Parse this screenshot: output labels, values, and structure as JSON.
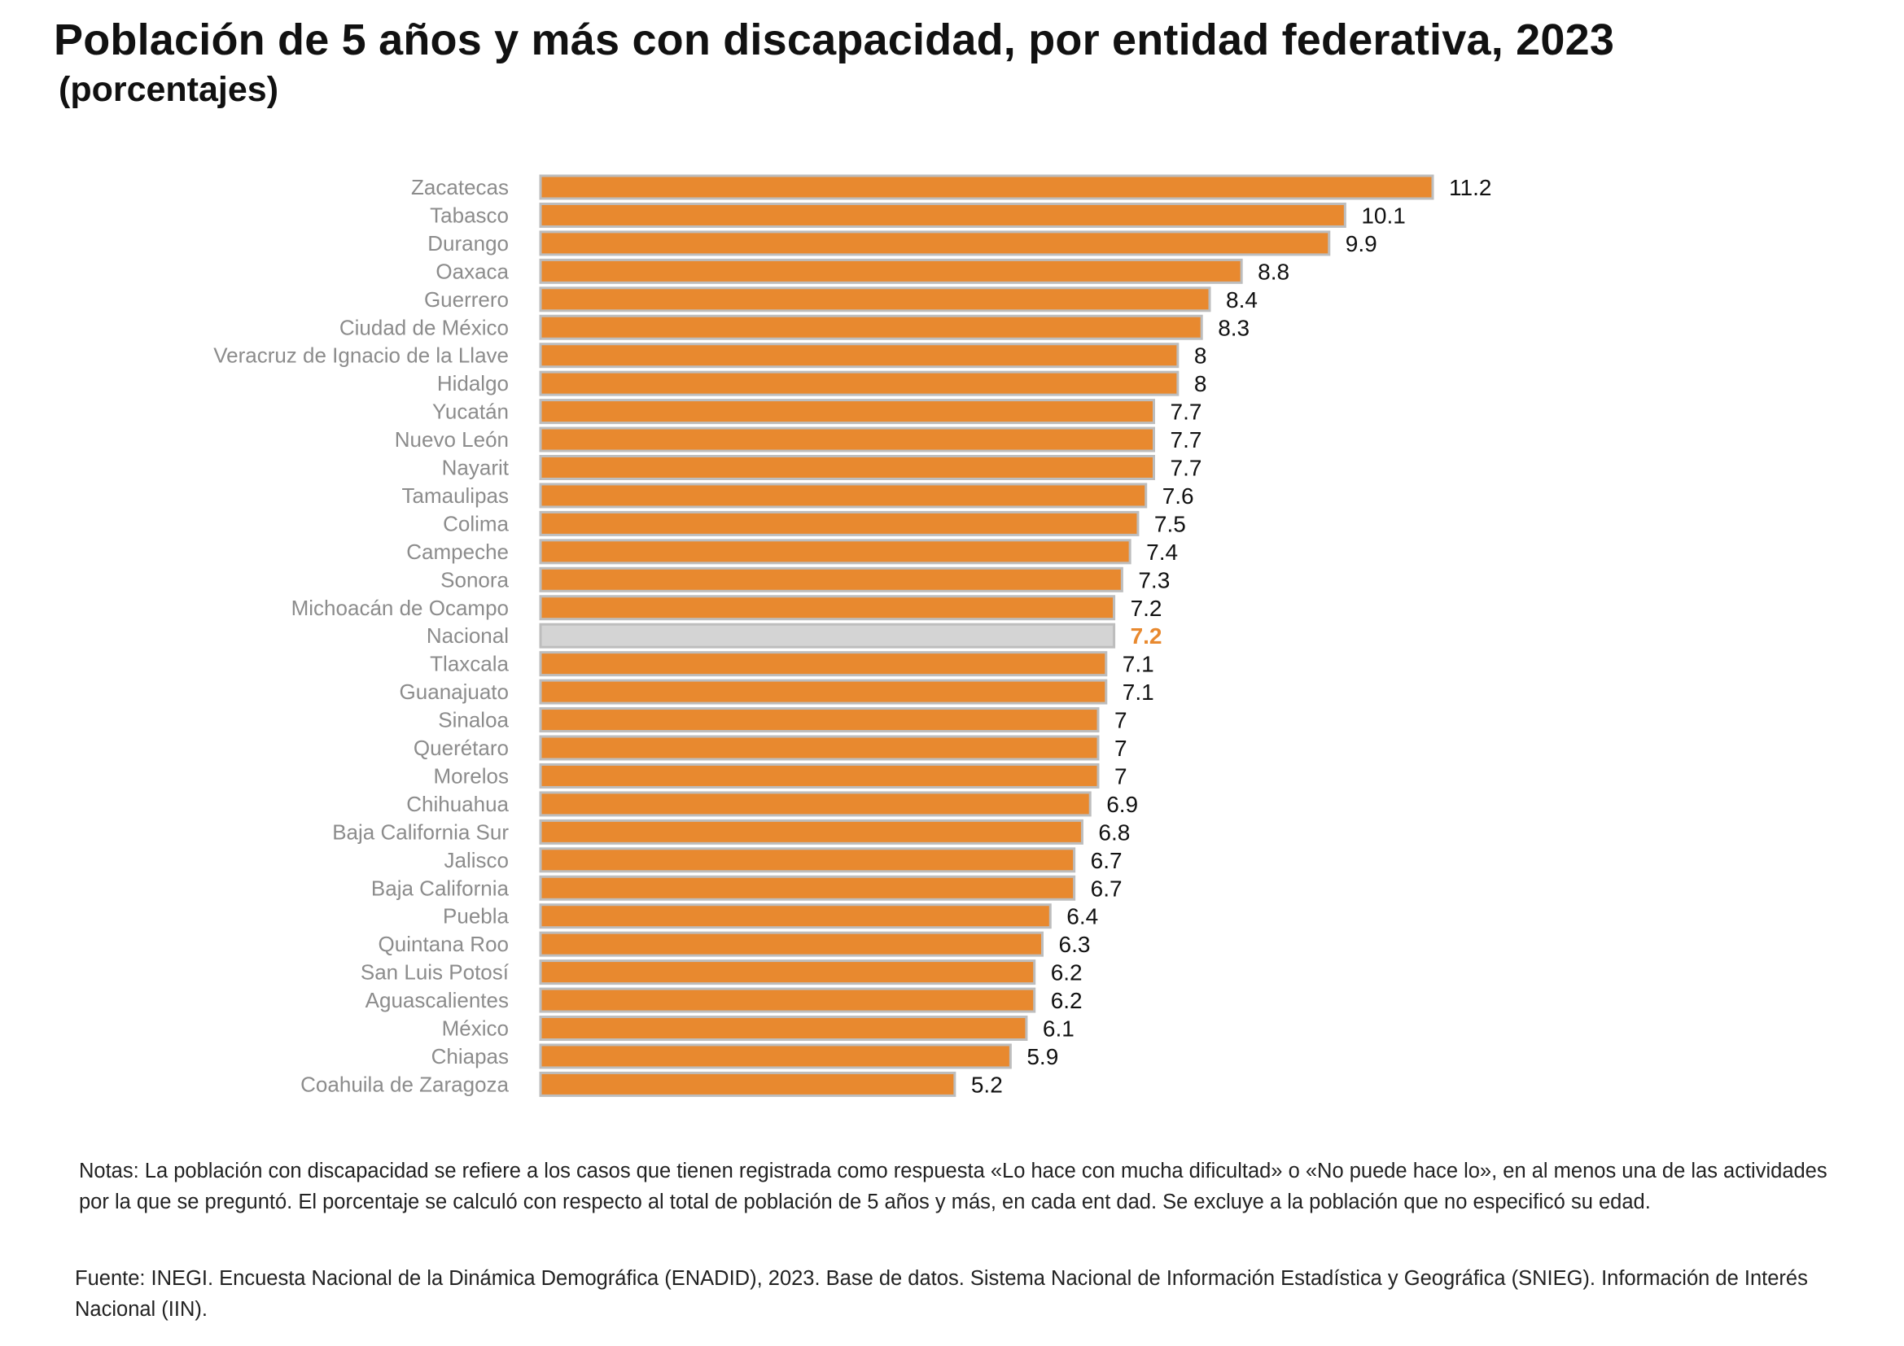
{
  "header": {
    "title": "Población de 5 años y más con discapacidad, por entidad federativa, 2023",
    "subtitle": "(porcentajes)"
  },
  "colors": {
    "bar": "#e8892f",
    "bar_border": "#bdbdbd",
    "highlight_bar": "#d4d4d4",
    "highlight_label": "#e8892f"
  },
  "chart_data": {
    "type": "bar",
    "orientation": "horizontal",
    "title": "Población de 5 años y más con discapacidad, por entidad federativa, 2023",
    "subtitle": "(porcentajes)",
    "xlabel": "",
    "ylabel": "",
    "xlim": [
      0,
      11.2
    ],
    "grid": false,
    "legend": "none",
    "highlight_category": "Nacional",
    "categories": [
      "Zacatecas",
      "Tabasco",
      "Durango",
      "Oaxaca",
      "Guerrero",
      "Ciudad de México",
      "Veracruz de Ignacio de la Llave",
      "Hidalgo",
      "Yucatán",
      "Nuevo León",
      "Nayarit",
      "Tamaulipas",
      "Colima",
      "Campeche",
      "Sonora",
      "Michoacán de Ocampo",
      "Nacional",
      "Tlaxcala",
      "Guanajuato",
      "Sinaloa",
      "Querétaro",
      "Morelos",
      "Chihuahua",
      "Baja California Sur",
      "Jalisco",
      "Baja California",
      "Puebla",
      "Quintana Roo",
      "San Luis Potosí",
      "Aguascalientes",
      "México",
      "Chiapas",
      "Coahuila de Zaragoza"
    ],
    "values": [
      11.2,
      10.1,
      9.9,
      8.8,
      8.4,
      8.3,
      8,
      8,
      7.7,
      7.7,
      7.7,
      7.6,
      7.5,
      7.4,
      7.3,
      7.2,
      7.2,
      7.1,
      7.1,
      7,
      7,
      7,
      6.9,
      6.8,
      6.7,
      6.7,
      6.4,
      6.3,
      6.2,
      6.2,
      6.1,
      5.9,
      5.2
    ],
    "value_labels": [
      "11.2",
      "10.1",
      "9.9",
      "8.8",
      "8.4",
      "8.3",
      "8",
      "8",
      "7.7",
      "7.7",
      "7.7",
      "7.6",
      "7.5",
      "7.4",
      "7.3",
      "7.2",
      "7.2",
      "7.1",
      "7.1",
      "7",
      "7",
      "7",
      "6.9",
      "6.8",
      "6.7",
      "6.7",
      "6.4",
      "6.3",
      "6.2",
      "6.2",
      "6.1",
      "5.9",
      "5.2"
    ]
  },
  "footer": {
    "notes": "Notas: La población con discapacidad se refiere a los casos que tienen registrada como respuesta «Lo hace con mucha dificultad» o «No puede hace lo», en al menos una de las actividades por la que se preguntó. El porcentaje se calculó con respecto al total de población de 5 años y más, en cada ent dad. Se excluye a la población que no especificó su edad.",
    "source": "Fuente: INEGI. Encuesta Nacional de la Dinámica Demográfica (ENADID), 2023. Base de datos. Sistema Nacional de Información Estadística y Geográfica (SNIEG). Información de Interés Nacional (IIN)."
  }
}
